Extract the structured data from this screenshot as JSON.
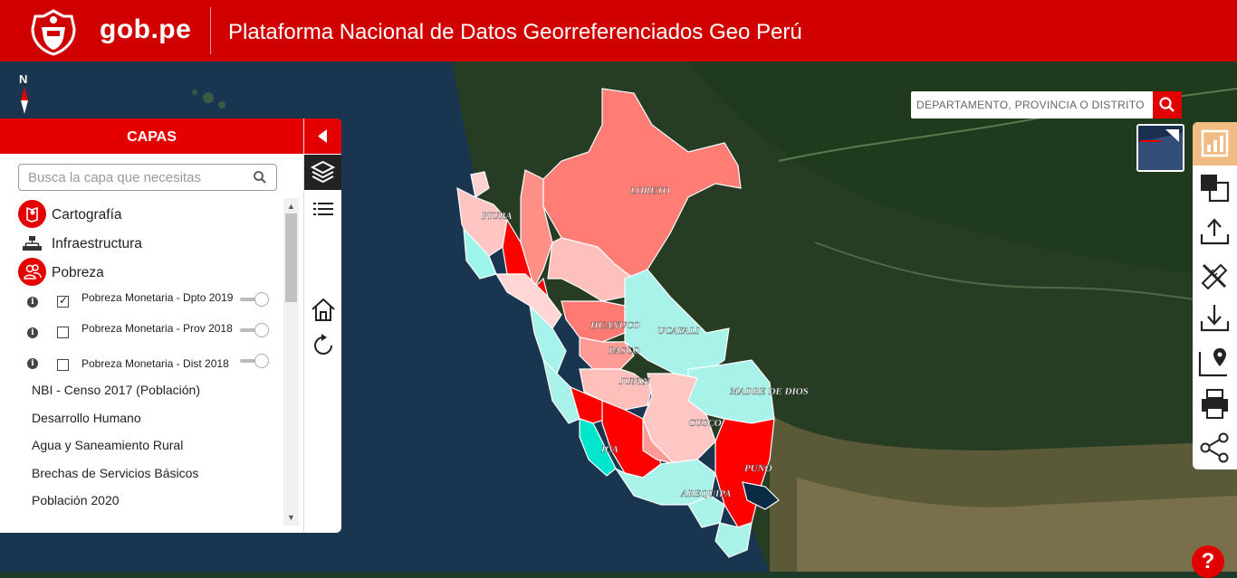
{
  "header": {
    "brand": "gob.pe",
    "title": "Plataforma Nacional de Datos Georreferenciados Geo Perú",
    "color": "#d00000"
  },
  "map": {
    "north_label": "N",
    "search_placeholder": "DEPARTAMENTO, PROVINCIA O DISTRITO",
    "region_labels": [
      "LORETO",
      "PIURA",
      "HUANUCO",
      "UCAYALI",
      "PASCO",
      "JUNIN",
      "MADRE DE DIOS",
      "CUSCO",
      "ICA",
      "PUNO",
      "AREQUIPA"
    ]
  },
  "panel": {
    "title": "CAPAS",
    "search_placeholder": "Busca la capa que necesitas",
    "categories": [
      {
        "label": "Cartografía",
        "icon": "map-icon"
      },
      {
        "label": "Infraestructura",
        "icon": "network-icon"
      },
      {
        "label": "Pobreza",
        "icon": "people-icon"
      }
    ],
    "sublayers": [
      {
        "label": "Pobreza Monetaria - Dpto 2019",
        "checked": true
      },
      {
        "label": "Pobreza Monetaria - Prov 2018",
        "checked": false
      },
      {
        "label": "Pobreza Monetaria - Dist 2018",
        "checked": false
      }
    ],
    "items": [
      "NBI - Censo 2017 (Población)",
      "Desarrollo Humano",
      "Agua y Saneamiento Rural",
      "Brechas de Servicios Básicos",
      "Población 2020"
    ]
  },
  "help_label": "?",
  "toolbar_icons": [
    "chart-icon",
    "layers-overlap-icon",
    "upload-icon",
    "measure-icon",
    "download-icon",
    "location-icon",
    "print-icon",
    "share-icon"
  ],
  "colors": {
    "accent": "#e50000",
    "active_tool": "#f1bc83"
  }
}
